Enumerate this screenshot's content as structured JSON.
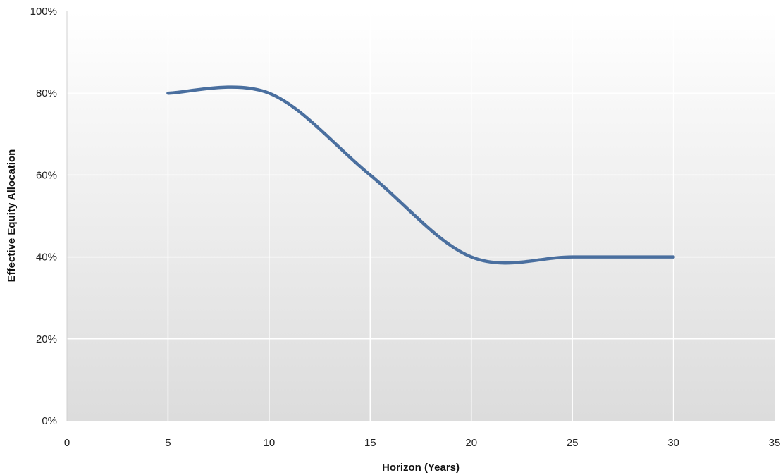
{
  "chart_data": {
    "type": "line",
    "xlabel": "Horizon (Years)",
    "ylabel": "Effective Equity Allocation",
    "xlim": [
      0,
      35
    ],
    "ylim": [
      0,
      100
    ],
    "x_ticks": [
      0,
      5,
      10,
      15,
      20,
      25,
      30,
      35
    ],
    "x_tick_labels": [
      "0",
      "5",
      "10",
      "15",
      "20",
      "25",
      "30",
      "35"
    ],
    "y_ticks": [
      0,
      20,
      40,
      60,
      80,
      100
    ],
    "y_tick_labels": [
      "0%",
      "20%",
      "40%",
      "60%",
      "80%",
      "100%"
    ],
    "grid": true,
    "smooth": true,
    "series": [
      {
        "color": "#4a6f9f",
        "x": [
          5,
          10,
          15,
          20,
          25,
          30
        ],
        "y": [
          80,
          80,
          60,
          40,
          40,
          40
        ]
      }
    ],
    "background_gradient": [
      "#ffffff",
      "#dcdcdc"
    ]
  }
}
